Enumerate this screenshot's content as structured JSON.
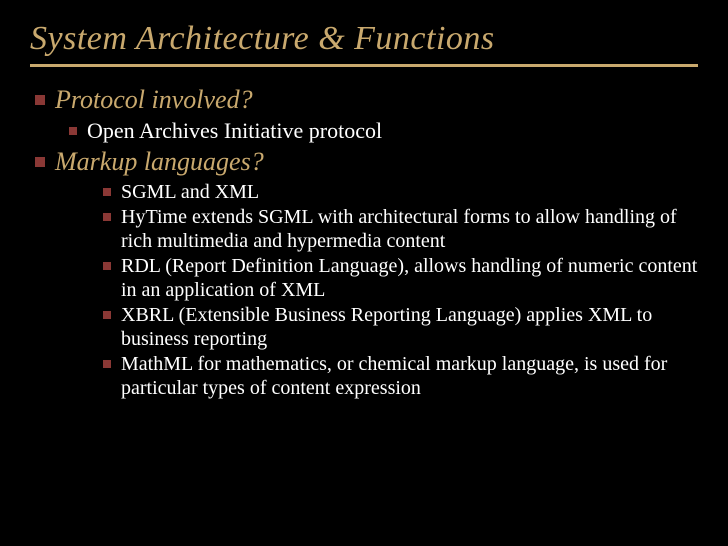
{
  "slide": {
    "title": "System Architecture & Functions",
    "title_color": "#c9a96e",
    "underline_color": "#c9a96e",
    "background_color": "#000000",
    "bullet_color": "#8a3835",
    "level1_color": "#c9a96e",
    "level2_color": "#ffffff",
    "level3_color": "#ffffff",
    "title_fontsize": 34,
    "level1_fontsize": 26,
    "level2_fontsize": 22,
    "level3_fontsize": 20,
    "items": [
      {
        "level": 1,
        "text": "Protocol involved?"
      },
      {
        "level": 2,
        "text": "Open Archives Initiative protocol"
      },
      {
        "level": 1,
        "text": "Markup languages?"
      },
      {
        "level": 3,
        "text": "SGML and XML"
      },
      {
        "level": 3,
        "text": "HyTime extends SGML with architectural forms to allow handling of rich multimedia and hypermedia content"
      },
      {
        "level": 3,
        "text": "RDL (Report Definition Language), allows handling of numeric content in an application of XML"
      },
      {
        "level": 3,
        "text": "XBRL (Extensible Business Reporting Language) applies XML to business reporting"
      },
      {
        "level": 3,
        "text": "MathML for mathematics, or chemical markup language, is used for particular types of content expression"
      }
    ]
  }
}
